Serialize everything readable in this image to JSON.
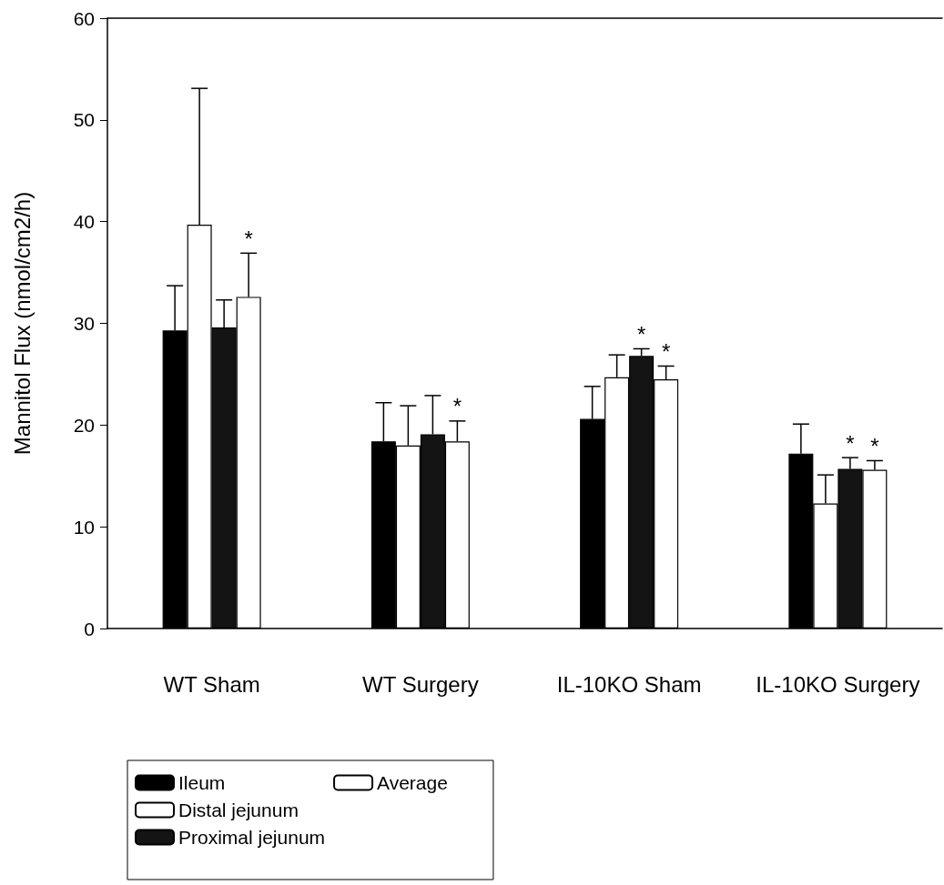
{
  "chart_data": {
    "type": "bar",
    "ylabel": "Mannitol Flux (nmol/cm2/h)",
    "categories": [
      "WT Sham",
      "WT Surgery",
      "IL-10KO Sham",
      "IL-10KO Surgery"
    ],
    "series": [
      {
        "name": "Ileum",
        "color": "#000000",
        "values": [
          29.3,
          18.4,
          20.6,
          17.2
        ],
        "errors": [
          [
            29.3,
            33.7
          ],
          [
            18.4,
            22.2
          ],
          [
            20.6,
            23.8
          ],
          [
            17.2,
            20.1
          ]
        ]
      },
      {
        "name": "Distal jejunum",
        "color": "#ffffff",
        "values": [
          39.7,
          18.0,
          24.7,
          12.3
        ],
        "errors": [
          [
            39.7,
            53.1
          ],
          [
            18.0,
            21.9
          ],
          [
            24.7,
            26.9
          ],
          [
            12.3,
            15.1
          ]
        ]
      },
      {
        "name": "Proximal jejunum",
        "color": "#141414",
        "values": [
          29.6,
          19.1,
          26.8,
          15.7
        ],
        "errors": [
          [
            29.6,
            32.3
          ],
          [
            19.1,
            22.9
          ],
          [
            26.8,
            27.5
          ],
          [
            15.7,
            16.8
          ]
        ],
        "value_labels": [
          null,
          null,
          "*",
          "*"
        ]
      },
      {
        "name": "Average",
        "color": "#ffffff",
        "values": [
          32.6,
          18.4,
          24.5,
          15.6
        ],
        "errors": [
          [
            32.6,
            36.9
          ],
          [
            18.4,
            20.4
          ],
          [
            24.5,
            25.8
          ],
          [
            15.6,
            16.5
          ]
        ],
        "value_labels": [
          "*",
          "*",
          "*",
          "*"
        ]
      }
    ],
    "ylim": [
      0,
      60
    ],
    "yticks": [
      0,
      10,
      20,
      30,
      40,
      50,
      60
    ],
    "grid": false,
    "legend": "bottom left"
  }
}
